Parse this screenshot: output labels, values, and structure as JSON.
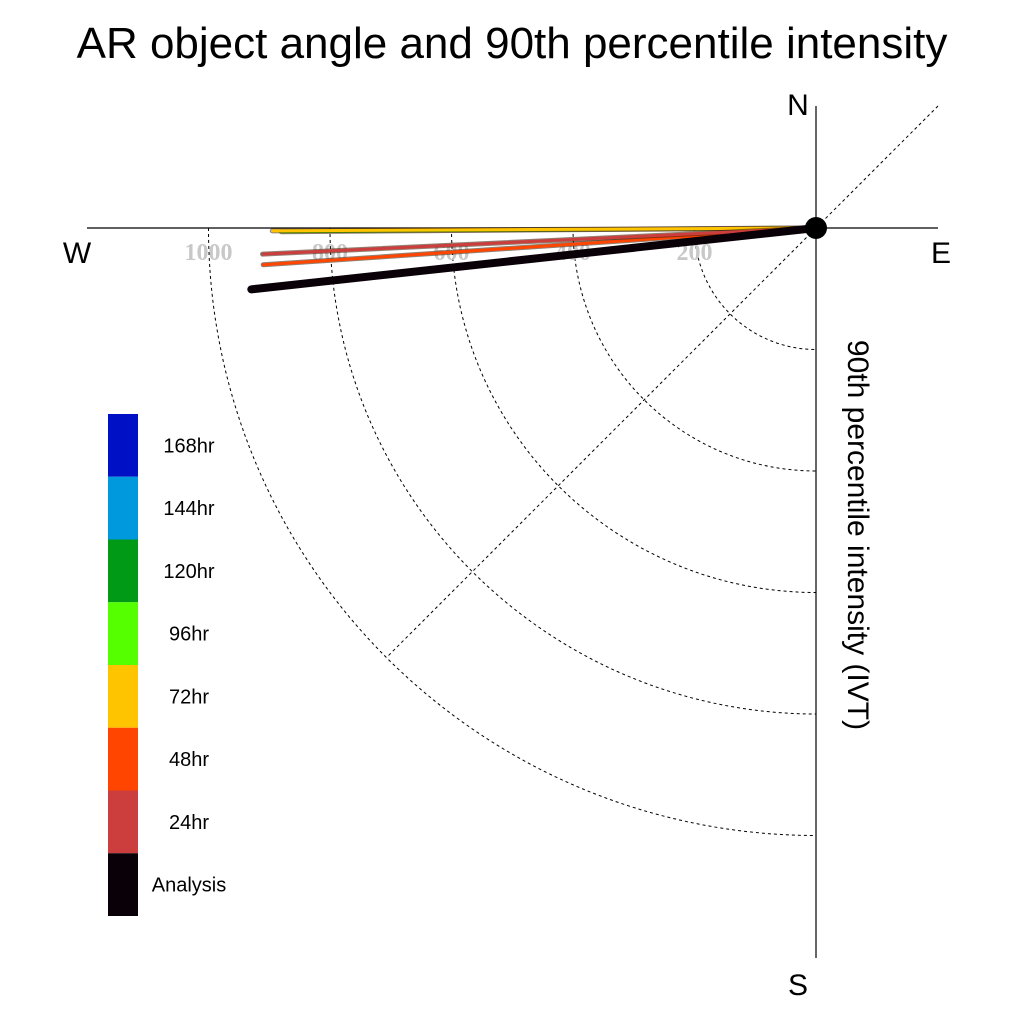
{
  "chart_data": {
    "type": "polar-quarter",
    "title": "AR object angle and 90th percentile intensity",
    "radial_label": "90th percentile intensity (IVT)",
    "compass": {
      "north": "N",
      "east": "E",
      "south": "S",
      "west": "W"
    },
    "radial_ticks": [
      200,
      400,
      600,
      800,
      1000
    ],
    "radial_tick_labels": [
      "200",
      "400",
      "600",
      "800",
      "1000"
    ],
    "radial_max": 1200,
    "angle_unit": "degrees below west (clockwise from W toward S)",
    "series": [
      {
        "name": "Analysis",
        "color": "#0a0008",
        "angle": 6.2,
        "intensity": 935
      },
      {
        "name": "24hr",
        "color": "#cc3d3d",
        "angle": 2.7,
        "intensity": 912
      },
      {
        "name": "48hr",
        "color": "#ff4500",
        "angle": 3.8,
        "intensity": 912
      },
      {
        "name": "72hr",
        "color": "#ffc400",
        "angle": 0.3,
        "intensity": 895
      },
      {
        "name": "96hr",
        "color": "#55ff00",
        "angle": 0.4,
        "intensity": 880
      },
      {
        "name": "120hr",
        "color": "#009a16",
        "angle": 0.0,
        "intensity": 0
      },
      {
        "name": "144hr",
        "color": "#0099dd",
        "angle": 0.0,
        "intensity": 0
      },
      {
        "name": "168hr",
        "color": "#0010c4",
        "angle": 0.0,
        "intensity": 0
      }
    ],
    "legend": {
      "placement": "bottom-left",
      "entries": [
        "168hr",
        "144hr",
        "120hr",
        "96hr",
        "72hr",
        "48hr",
        "24hr",
        "Analysis"
      ],
      "colors": [
        "#0010c4",
        "#0099dd",
        "#009a16",
        "#55ff00",
        "#ffc400",
        "#ff4500",
        "#cc3d3d",
        "#0a0008"
      ]
    }
  }
}
